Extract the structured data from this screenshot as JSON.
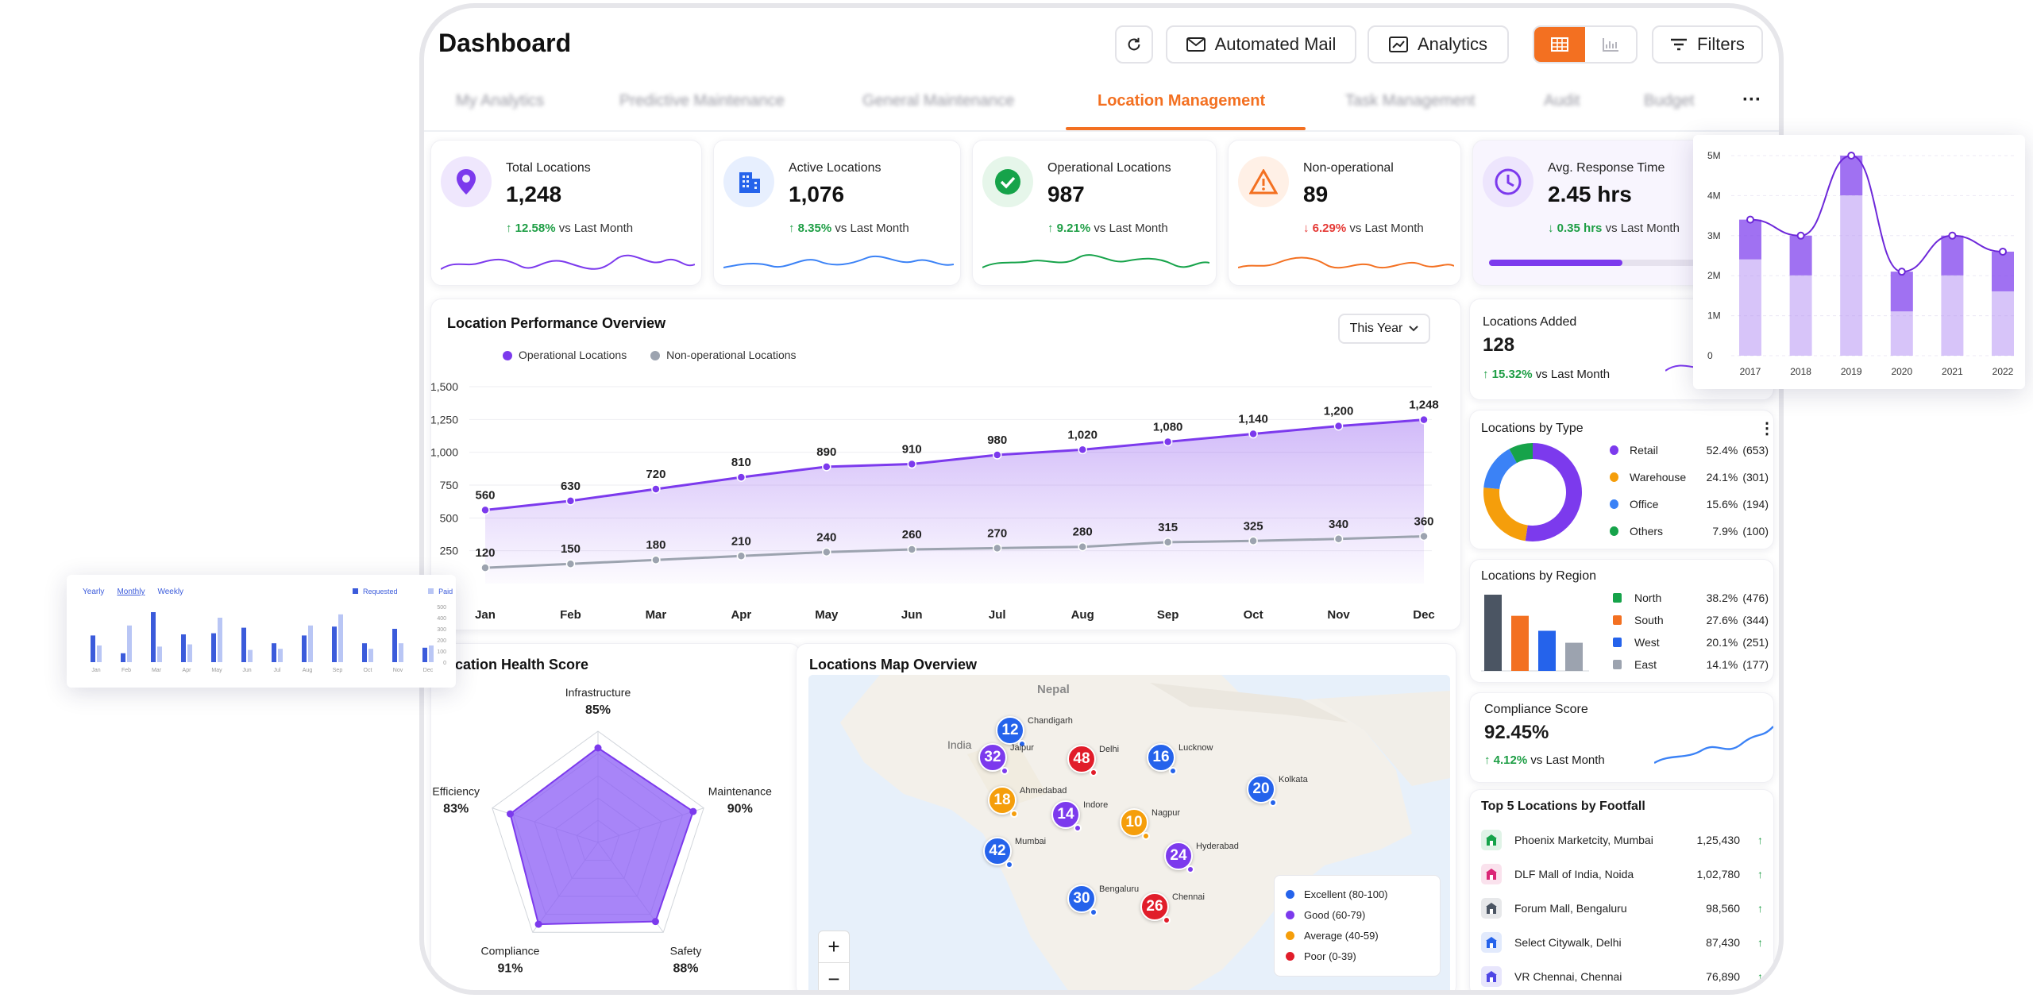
{
  "header": {
    "title": "Dashboard",
    "automated_mail": "Automated Mail",
    "analytics": "Analytics",
    "filters": "Filters"
  },
  "tabs": [
    {
      "label": "My Analytics"
    },
    {
      "label": "Predictive Maintenance"
    },
    {
      "label": "General Maintenance"
    },
    {
      "label": "Location Management"
    },
    {
      "label": "Task Management"
    },
    {
      "label": "Audit"
    },
    {
      "label": "Budget"
    }
  ],
  "kpis": [
    {
      "label": "Total Locations",
      "value": "1,248",
      "delta": "12.58%",
      "delta_suffix": "vs Last Month",
      "dir": "up",
      "color": "#7c3aed"
    },
    {
      "label": "Active Locations",
      "value": "1,076",
      "delta": "8.35%",
      "delta_suffix": "vs Last Month",
      "dir": "up",
      "color": "#2563eb"
    },
    {
      "label": "Operational Locations",
      "value": "987",
      "delta": "9.21%",
      "delta_suffix": "vs Last Month",
      "dir": "up",
      "color": "#16a34a"
    },
    {
      "label": "Non-operational",
      "value": "89",
      "delta": "6.29%",
      "delta_suffix": "vs Last Month",
      "dir": "down",
      "color": "#f37021"
    },
    {
      "label": "Avg. Response Time",
      "value": "2.45 hrs",
      "delta": "0.35 hrs",
      "delta_suffix": "vs Last Month",
      "dir": "down-good",
      "color": "#7c3aed"
    }
  ],
  "performance": {
    "title": "Location Performance Overview",
    "period": "This Year",
    "chart_data": {
      "type": "line",
      "categories": [
        "Jan",
        "Feb",
        "Mar",
        "Apr",
        "May",
        "Jun",
        "Jul",
        "Aug",
        "Sep",
        "Oct",
        "Nov",
        "Dec"
      ],
      "series": [
        {
          "name": "Operational Locations",
          "values": [
            560,
            630,
            720,
            810,
            890,
            910,
            980,
            1020,
            1080,
            1140,
            1200,
            1248
          ],
          "color": "#7c3aed"
        },
        {
          "name": "Non-operational Locations",
          "values": [
            120,
            150,
            180,
            210,
            240,
            260,
            270,
            280,
            315,
            325,
            340,
            360
          ],
          "color": "#9ca3af"
        }
      ],
      "yticks": [
        "1,500",
        "1,250",
        "1,000",
        "750",
        "500",
        "250"
      ],
      "ylim": [
        0,
        1500
      ]
    }
  },
  "health": {
    "title": "Location Health Score",
    "chart_data": {
      "type": "radar",
      "axes": [
        {
          "label": "Infrastructure",
          "value": "85%",
          "score": 85
        },
        {
          "label": "Maintenance",
          "value": "90%",
          "score": 90
        },
        {
          "label": "Safety",
          "value": "88%",
          "score": 88
        },
        {
          "label": "Compliance",
          "value": "91%",
          "score": 91
        },
        {
          "label": "Efficiency",
          "value": "83%",
          "score": 83
        }
      ]
    }
  },
  "map": {
    "title": "Locations Map Overview",
    "country": "India",
    "neighbor": "Nepal",
    "markers": [
      {
        "city": "Chandigarh",
        "count": "12",
        "color": "#2563eb"
      },
      {
        "city": "Delhi",
        "count": "48",
        "color": "#e11d2a"
      },
      {
        "city": "Jaipur",
        "count": "32",
        "color": "#7c3aed"
      },
      {
        "city": "Lucknow",
        "count": "16",
        "color": "#2563eb"
      },
      {
        "city": "Kolkata",
        "count": "20",
        "color": "#2563eb"
      },
      {
        "city": "Ahmedabad",
        "count": "18",
        "color": "#f59e0b"
      },
      {
        "city": "Indore",
        "count": "14",
        "color": "#7c3aed"
      },
      {
        "city": "Nagpur",
        "count": "10",
        "color": "#f59e0b"
      },
      {
        "city": "Mumbai",
        "count": "42",
        "color": "#2563eb"
      },
      {
        "city": "Hyderabad",
        "count": "24",
        "color": "#7c3aed"
      },
      {
        "city": "Bengaluru",
        "count": "30",
        "color": "#2563eb"
      },
      {
        "city": "Chennai",
        "count": "26",
        "color": "#e11d2a"
      }
    ],
    "legend": [
      {
        "label": "Excellent (80-100)",
        "color": "#2563eb"
      },
      {
        "label": "Good (60-79)",
        "color": "#7c3aed"
      },
      {
        "label": "Average (40-59)",
        "color": "#f59e0b"
      },
      {
        "label": "Poor (0-39)",
        "color": "#e11d2a"
      }
    ],
    "zoom_in": "+",
    "zoom_out": "−"
  },
  "locations_added": {
    "label": "Locations Added",
    "value": "128",
    "delta": "15.32%",
    "delta_suffix": "vs Last Month"
  },
  "by_type": {
    "title": "Locations by Type",
    "items": [
      {
        "label": "Retail",
        "pct": "52.4%",
        "count": "(653)",
        "value": 52.4,
        "color": "#7c3aed"
      },
      {
        "label": "Warehouse",
        "pct": "24.1%",
        "count": "(301)",
        "value": 24.1,
        "color": "#f59e0b"
      },
      {
        "label": "Office",
        "pct": "15.6%",
        "count": "(194)",
        "value": 15.6,
        "color": "#3b82f6"
      },
      {
        "label": "Others",
        "pct": "7.9%",
        "count": "(100)",
        "value": 7.9,
        "color": "#16a34a"
      }
    ]
  },
  "by_region": {
    "title": "Locations by Region",
    "items": [
      {
        "label": "North",
        "pct": "38.2%",
        "count": "(476)",
        "value": 38.2,
        "color": "#16a34a",
        "bar": "#4b5563"
      },
      {
        "label": "South",
        "pct": "27.6%",
        "count": "(344)",
        "value": 27.6,
        "color": "#f37021",
        "bar": "#f37021"
      },
      {
        "label": "West",
        "pct": "20.1%",
        "count": "(251)",
        "value": 20.1,
        "color": "#2563eb",
        "bar": "#2563eb"
      },
      {
        "label": "East",
        "pct": "14.1%",
        "count": "(177)",
        "value": 14.1,
        "color": "#9ca3af",
        "bar": "#9ca3af"
      }
    ]
  },
  "compliance": {
    "label": "Compliance Score",
    "value": "92.45%",
    "delta": "4.12%",
    "delta_suffix": "vs Last Month"
  },
  "footfall": {
    "title": "Top 5 Locations by Footfall",
    "items": [
      {
        "name": "Phoenix Marketcity, Mumbai",
        "value": "1,25,430",
        "icon_color": "#16a34a"
      },
      {
        "name": "DLF Mall of India, Noida",
        "value": "1,02,780",
        "icon_color": "#db2777"
      },
      {
        "name": "Forum Mall, Bengaluru",
        "value": "98,560",
        "icon_color": "#4b5563"
      },
      {
        "name": "Select Citywalk, Delhi",
        "value": "87,430",
        "icon_color": "#2563eb"
      },
      {
        "name": "VR Chennai, Chennai",
        "value": "76,890",
        "icon_color": "#4f46e5"
      }
    ]
  },
  "float_area": {
    "chart_data": {
      "type": "area",
      "categories": [
        "2017",
        "2018",
        "2019",
        "2020",
        "2021",
        "2022"
      ],
      "values": [
        3.4,
        3.0,
        5.0,
        2.1,
        3.0,
        2.6
      ],
      "yticks": [
        "5M",
        "4M",
        "3M",
        "2M",
        "1M",
        "0"
      ],
      "ylim": [
        0,
        5
      ]
    }
  },
  "float_bars": {
    "tabs": [
      "Yearly",
      "Monthly",
      "Weekly"
    ],
    "legend": [
      "Requested",
      "Paid"
    ],
    "yticks": [
      "500",
      "400",
      "300",
      "200",
      "100",
      "0"
    ],
    "chart_data": {
      "type": "bar",
      "categories": [
        "Jan",
        "Feb",
        "Mar",
        "Apr",
        "May",
        "Jun",
        "Jul",
        "Aug",
        "Sep",
        "Oct",
        "Nov",
        "Dec"
      ],
      "series": [
        {
          "name": "Requested",
          "values": [
            240,
            80,
            450,
            250,
            260,
            310,
            170,
            240,
            320,
            170,
            300,
            130
          ],
          "color": "#3b5bdb"
        },
        {
          "name": "Paid",
          "values": [
            150,
            330,
            140,
            160,
            400,
            110,
            120,
            330,
            430,
            120,
            170,
            150
          ],
          "color": "#b9c6f5"
        }
      ],
      "ylim": [
        0,
        500
      ]
    }
  }
}
